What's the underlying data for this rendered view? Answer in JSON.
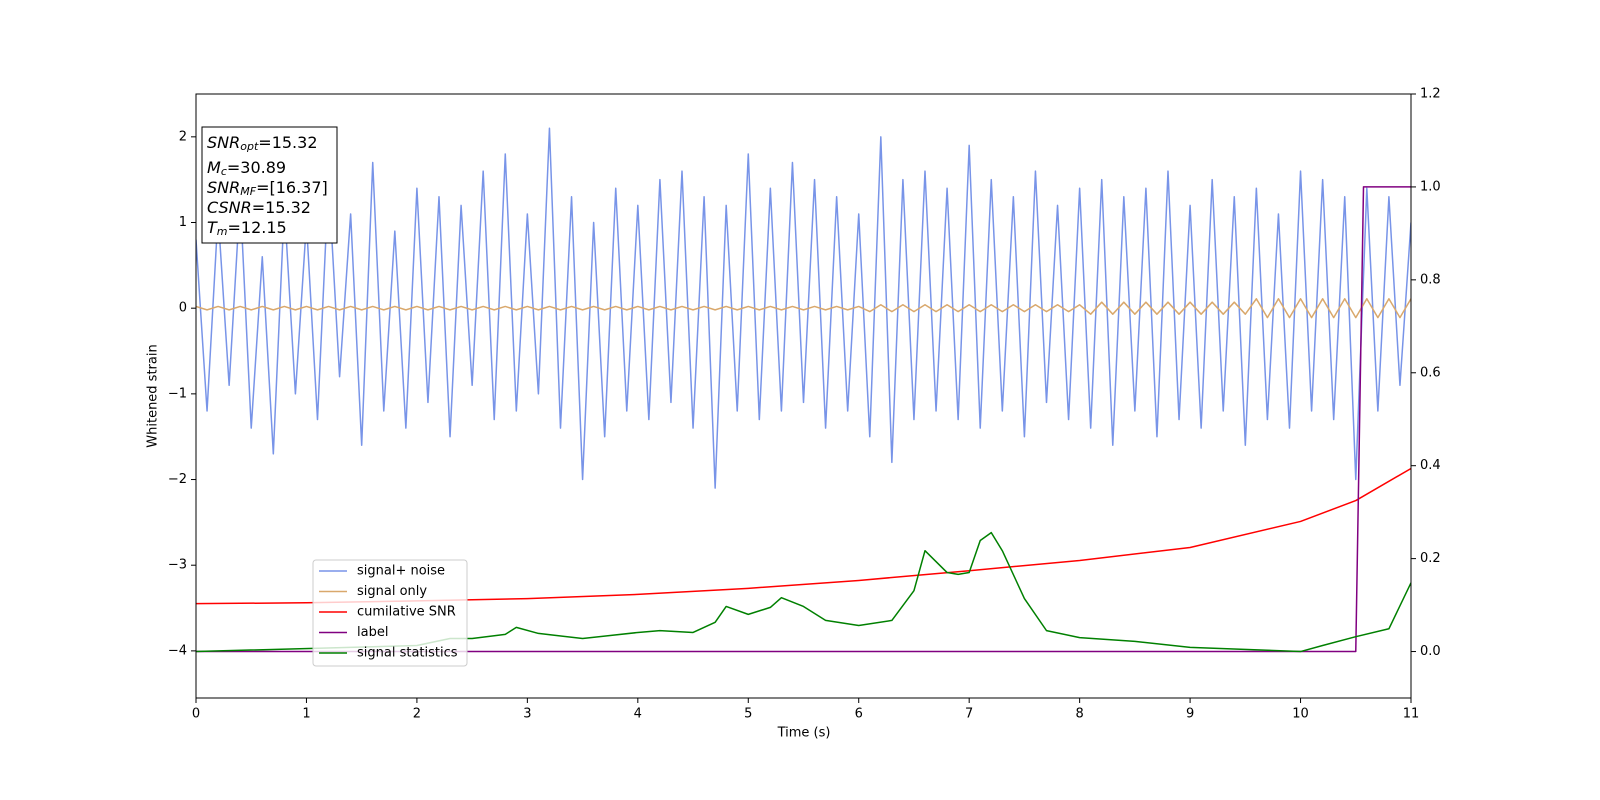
{
  "chart_data": {
    "type": "line",
    "xlabel": "Time (s)",
    "ylabel": "Whitened strain",
    "xlim": [
      0,
      11
    ],
    "xticks": [
      0,
      1,
      2,
      3,
      4,
      5,
      6,
      7,
      8,
      9,
      10,
      11
    ],
    "ylim": [
      -4.55,
      2.5
    ],
    "yticks": [
      {
        "value": -4,
        "label": "−4"
      },
      {
        "value": -3,
        "label": "−3"
      },
      {
        "value": -2,
        "label": "−2"
      },
      {
        "value": -1,
        "label": "−1"
      },
      0,
      1,
      2
    ],
    "y2lim": [
      -0.1,
      1.2
    ],
    "y2ticks": [
      {
        "value": 0,
        "label": "0.0"
      },
      0.2,
      0.4,
      0.6,
      0.8,
      {
        "value": 1,
        "label": "1.0"
      },
      1.2
    ],
    "legend": "lower left",
    "annotation": [
      {
        "name": "SNR",
        "sub": "opt",
        "text": "=15.32"
      },
      {
        "name": "M",
        "sub": "c",
        "text": "=30.89"
      },
      {
        "name": "SNR",
        "sub": "MF",
        "text": "=[16.37]"
      },
      {
        "name": "CSNR",
        "sub": "",
        "text": "=15.32"
      },
      {
        "name": "T",
        "sub": "m",
        "text": "=12.15"
      }
    ],
    "x": [
      0,
      0.1,
      0.2,
      0.3,
      0.4,
      0.5,
      0.6,
      0.7,
      0.8,
      0.9,
      1,
      1.1,
      1.2,
      1.3,
      1.4,
      1.5,
      1.6,
      1.7,
      1.8,
      1.9,
      2,
      2.1,
      2.2,
      2.3,
      2.4,
      2.5,
      2.6,
      2.7,
      2.8,
      2.9,
      3,
      3.1,
      3.2,
      3.3,
      3.4,
      3.5,
      3.6,
      3.7,
      3.8,
      3.9,
      4,
      4.1,
      4.2,
      4.3,
      4.4,
      4.5,
      4.6,
      4.7,
      4.8,
      4.9,
      5,
      5.1,
      5.2,
      5.3,
      5.4,
      5.5,
      5.6,
      5.7,
      5.8,
      5.9,
      6,
      6.1,
      6.2,
      6.3,
      6.4,
      6.5,
      6.6,
      6.7,
      6.8,
      6.9,
      7,
      7.1,
      7.2,
      7.3,
      7.4,
      7.5,
      7.6,
      7.7,
      7.8,
      7.9,
      8,
      8.1,
      8.2,
      8.3,
      8.4,
      8.5,
      8.6,
      8.7,
      8.8,
      8.9,
      9,
      9.1,
      9.2,
      9.3,
      9.4,
      9.5,
      9.6,
      9.7,
      9.8,
      9.9,
      10,
      10.1,
      10.2,
      10.3,
      10.4,
      10.5,
      10.6,
      10.7,
      10.8,
      10.9,
      11
    ],
    "series": [
      {
        "name": "signal+ noise",
        "color": "#7894e8",
        "values": [
          0.8,
          -1.2,
          1.1,
          -0.9,
          1.3,
          -1.4,
          0.6,
          -1.7,
          1.2,
          -1.0,
          1.0,
          -1.3,
          1.5,
          -0.8,
          1.1,
          -1.6,
          1.7,
          -1.2,
          0.9,
          -1.4,
          1.4,
          -1.1,
          1.3,
          -1.5,
          1.2,
          -0.9,
          1.6,
          -1.3,
          1.8,
          -1.2,
          1.1,
          -1.0,
          2.1,
          -1.4,
          1.3,
          -2.0,
          1.0,
          -1.5,
          1.4,
          -1.2,
          1.2,
          -1.3,
          1.5,
          -1.1,
          1.6,
          -1.4,
          1.3,
          -2.1,
          1.2,
          -1.2,
          1.8,
          -1.3,
          1.4,
          -1.2,
          1.7,
          -1.1,
          1.5,
          -1.4,
          1.3,
          -1.2,
          1.1,
          -1.5,
          2.0,
          -1.8,
          1.5,
          -1.3,
          1.6,
          -1.2,
          1.4,
          -1.3,
          1.9,
          -1.4,
          1.5,
          -1.2,
          1.3,
          -1.5,
          1.6,
          -1.1,
          1.2,
          -1.3,
          1.4,
          -1.4,
          1.5,
          -1.6,
          1.3,
          -1.2,
          1.4,
          -1.5,
          1.6,
          -1.3,
          1.2,
          -1.4,
          1.5,
          -1.2,
          1.3,
          -1.6,
          1.4,
          -1.3,
          1.1,
          -1.4,
          1.6,
          -1.2,
          1.5,
          -1.3,
          1.3,
          -2.0,
          1.4,
          -1.2,
          1.3,
          -0.9,
          1.0
        ]
      },
      {
        "name": "signal only",
        "color": "#d9a86c",
        "values": [
          0.02,
          -0.02,
          0.02,
          -0.02,
          0.02,
          -0.02,
          0.02,
          -0.02,
          0.02,
          -0.02,
          0.02,
          -0.02,
          0.02,
          -0.02,
          0.02,
          -0.02,
          0.02,
          -0.02,
          0.02,
          -0.02,
          0.02,
          -0.02,
          0.02,
          -0.02,
          0.02,
          -0.02,
          0.02,
          -0.02,
          0.02,
          -0.02,
          0.02,
          -0.02,
          0.02,
          -0.02,
          0.02,
          -0.02,
          0.02,
          -0.02,
          0.02,
          -0.02,
          0.02,
          -0.02,
          0.02,
          -0.02,
          0.02,
          -0.02,
          0.02,
          -0.02,
          0.02,
          -0.02,
          0.02,
          -0.02,
          0.02,
          -0.02,
          0.02,
          -0.02,
          0.02,
          -0.02,
          0.02,
          -0.02,
          0.02,
          -0.04,
          0.04,
          -0.04,
          0.04,
          -0.04,
          0.04,
          -0.04,
          0.04,
          -0.04,
          0.04,
          -0.04,
          0.04,
          -0.04,
          0.04,
          -0.04,
          0.04,
          -0.04,
          0.04,
          -0.04,
          0.04,
          -0.07,
          0.07,
          -0.07,
          0.07,
          -0.07,
          0.07,
          -0.07,
          0.07,
          -0.07,
          0.07,
          -0.07,
          0.07,
          -0.07,
          0.07,
          -0.07,
          0.11,
          -0.11,
          0.11,
          -0.11,
          0.11,
          -0.11,
          0.11,
          -0.11,
          0.11,
          -0.11,
          0.11,
          -0.11,
          0.11,
          -0.11,
          0.11
        ]
      },
      {
        "name": "cumilative SNR",
        "color": "#ff0000",
        "axis": "y2",
        "x": [
          0,
          1,
          2,
          3,
          4,
          5,
          6,
          7,
          8,
          9,
          10,
          10.5,
          11
        ],
        "values": [
          0.103,
          0.105,
          0.109,
          0.114,
          0.123,
          0.136,
          0.153,
          0.174,
          0.196,
          0.224,
          0.28,
          0.325,
          0.394
        ]
      },
      {
        "name": "label",
        "color": "#800080",
        "axis": "y2",
        "x": [
          0,
          10.5,
          10.57,
          11
        ],
        "values": [
          0,
          0,
          1,
          1
        ]
      },
      {
        "name": "signal statistics",
        "color": "#008000",
        "axis": "y2",
        "x": [
          0,
          2,
          2.3,
          2.5,
          2.8,
          2.9,
          3.1,
          3.5,
          4,
          4.2,
          4.5,
          4.7,
          4.8,
          5,
          5.2,
          5.3,
          5.5,
          5.7,
          6,
          6.3,
          6.5,
          6.6,
          6.8,
          6.9,
          7,
          7.1,
          7.2,
          7.3,
          7.5,
          7.7,
          8,
          8.5,
          9,
          10,
          10.2,
          10.5,
          10.8,
          11
        ],
        "values": [
          0,
          0.013,
          0.028,
          0.028,
          0.037,
          0.052,
          0.039,
          0.028,
          0.041,
          0.045,
          0.041,
          0.063,
          0.097,
          0.08,
          0.095,
          0.116,
          0.097,
          0.067,
          0.056,
          0.067,
          0.131,
          0.217,
          0.17,
          0.166,
          0.17,
          0.239,
          0.256,
          0.217,
          0.114,
          0.045,
          0.03,
          0.022,
          0.009,
          0,
          0.013,
          0.032,
          0.049,
          0.148
        ]
      }
    ]
  }
}
